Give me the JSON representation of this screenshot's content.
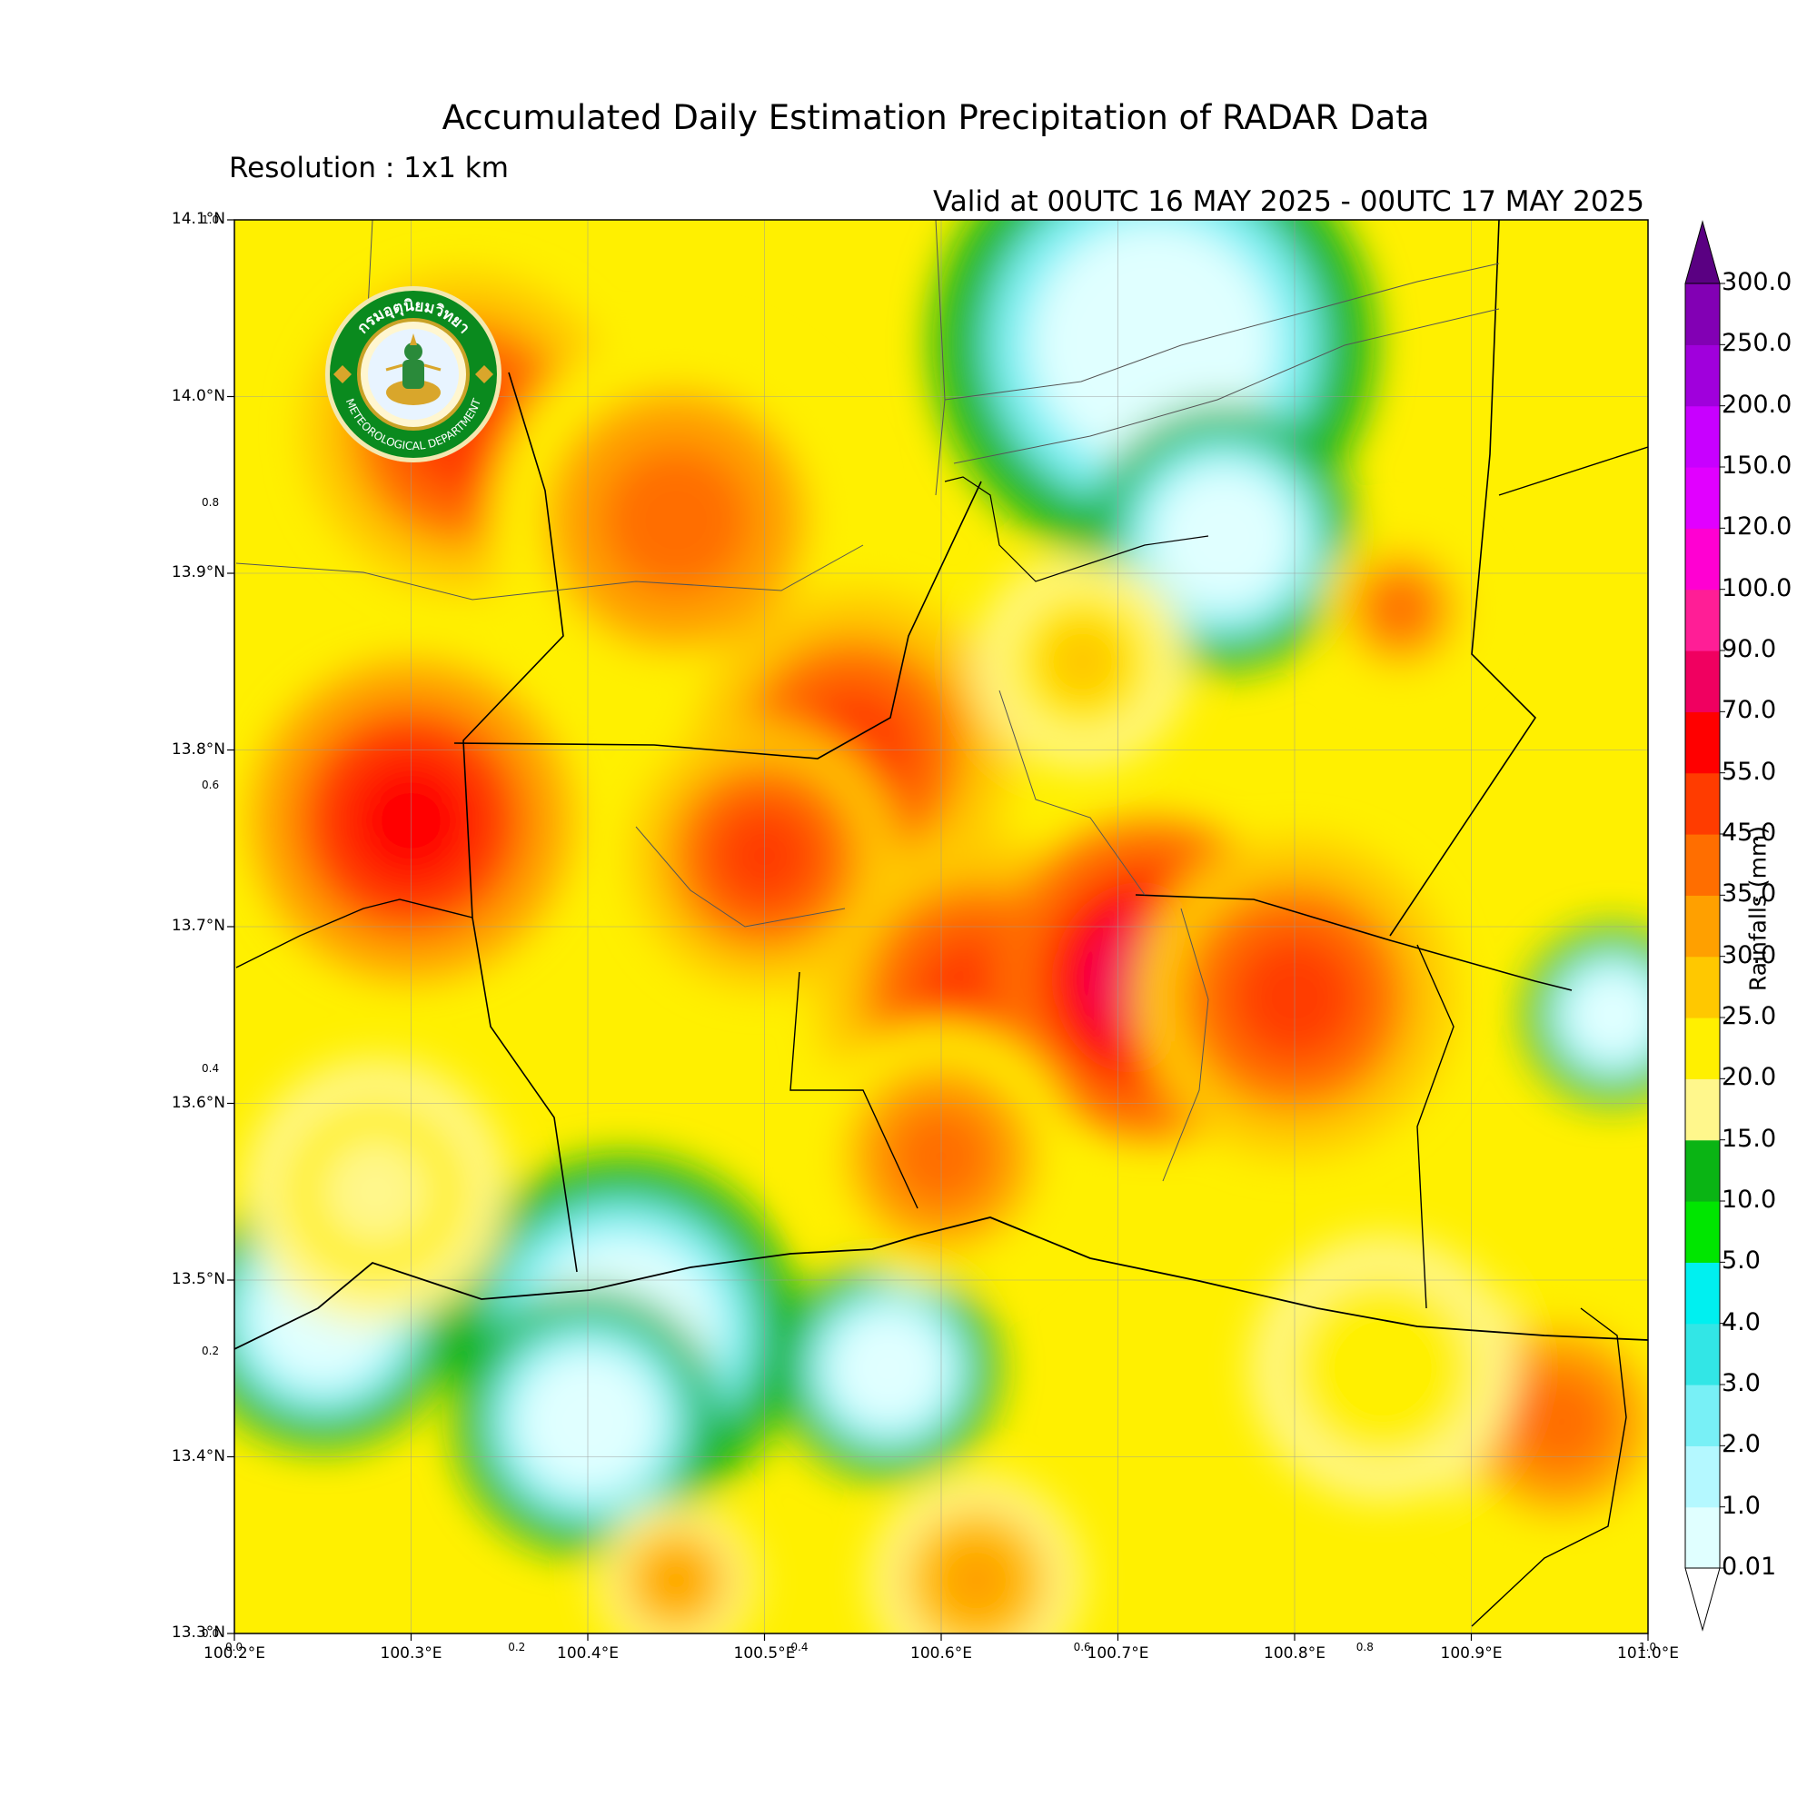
{
  "title": "Accumulated Daily Estimation Precipitation of RADAR Data",
  "resolution": "Resolution : 1x1 km",
  "valid": "Valid at 00UTC 16 MAY 2025 - 00UTC 17 MAY 2025",
  "logo": {
    "text_top": "กรมอุตุนิยมวิทยา",
    "text_bottom": "METEOROLOGICAL DEPARTMENT",
    "icon": "meteorological-department-seal"
  },
  "map": {
    "lon_range": [
      100.2,
      101.0
    ],
    "lat_range": [
      13.3,
      14.1
    ],
    "lon_ticks": [
      {
        "value": 100.2,
        "label": "100.2°E"
      },
      {
        "value": 100.3,
        "label": "100.3°E"
      },
      {
        "value": 100.4,
        "label": "100.4°E"
      },
      {
        "value": 100.5,
        "label": "100.5°E"
      },
      {
        "value": 100.6,
        "label": "100.6°E"
      },
      {
        "value": 100.7,
        "label": "100.7°E"
      },
      {
        "value": 100.8,
        "label": "100.8°E"
      },
      {
        "value": 100.9,
        "label": "100.9°E"
      },
      {
        "value": 101.0,
        "label": "101.0°E"
      }
    ],
    "lat_ticks": [
      {
        "value": 14.1,
        "label": "14.1°N"
      },
      {
        "value": 14.0,
        "label": "14.0°N"
      },
      {
        "value": 13.9,
        "label": "13.9°N"
      },
      {
        "value": 13.8,
        "label": "13.8°N"
      },
      {
        "value": 13.7,
        "label": "13.7°N"
      },
      {
        "value": 13.6,
        "label": "13.6°N"
      },
      {
        "value": 13.5,
        "label": "13.5°N"
      },
      {
        "value": 13.4,
        "label": "13.4°N"
      },
      {
        "value": 13.3,
        "label": "13.3°N"
      }
    ],
    "ghost_ticks_x": [
      {
        "value": 0.0,
        "label": "0.0"
      },
      {
        "value": 0.2,
        "label": "0.2"
      },
      {
        "value": 0.4,
        "label": "0.4"
      },
      {
        "value": 0.6,
        "label": "0.6"
      },
      {
        "value": 0.8,
        "label": "0.8"
      },
      {
        "value": 1.0,
        "label": "1.0"
      }
    ],
    "ghost_ticks_y": [
      {
        "value": 1.0,
        "label": "1.0"
      },
      {
        "value": 0.8,
        "label": "0.8"
      },
      {
        "value": 0.6,
        "label": "0.6"
      },
      {
        "value": 0.4,
        "label": "0.4"
      },
      {
        "value": 0.2,
        "label": "0.2"
      },
      {
        "value": 0.0,
        "label": "0.0"
      }
    ],
    "grid": true,
    "blobs": [
      {
        "lon": 100.33,
        "lat": 13.98,
        "r": 0.06,
        "level": 12
      },
      {
        "lon": 100.45,
        "lat": 13.93,
        "r": 0.07,
        "level": 11
      },
      {
        "lon": 100.55,
        "lat": 13.8,
        "r": 0.06,
        "level": 12
      },
      {
        "lon": 100.3,
        "lat": 13.76,
        "r": 0.06,
        "level": 13
      },
      {
        "lon": 100.5,
        "lat": 13.74,
        "r": 0.05,
        "level": 12
      },
      {
        "lon": 100.62,
        "lat": 13.66,
        "r": 0.06,
        "level": 12
      },
      {
        "lon": 100.72,
        "lat": 13.67,
        "r": 0.06,
        "level": 14
      },
      {
        "lon": 100.8,
        "lat": 13.66,
        "r": 0.06,
        "level": 12
      },
      {
        "lon": 100.6,
        "lat": 13.57,
        "r": 0.05,
        "level": 11
      },
      {
        "lon": 100.95,
        "lat": 13.42,
        "r": 0.05,
        "level": 11
      },
      {
        "lon": 100.68,
        "lat": 13.85,
        "r": 0.04,
        "level": 9
      },
      {
        "lon": 100.86,
        "lat": 13.88,
        "r": 0.03,
        "level": 11
      },
      {
        "lon": 100.28,
        "lat": 13.55,
        "r": 0.05,
        "level": 7
      },
      {
        "lon": 100.85,
        "lat": 13.45,
        "r": 0.05,
        "level": 8
      },
      {
        "lon": 100.62,
        "lat": 13.33,
        "r": 0.04,
        "level": 10
      },
      {
        "lon": 100.45,
        "lat": 13.33,
        "r": 0.03,
        "level": 10
      }
    ],
    "dry_areas": [
      {
        "lon": 100.72,
        "lat": 14.03,
        "r": 0.1
      },
      {
        "lon": 100.42,
        "lat": 13.47,
        "r": 0.08
      },
      {
        "lon": 100.25,
        "lat": 13.48,
        "r": 0.06
      },
      {
        "lon": 100.4,
        "lat": 13.42,
        "r": 0.06
      },
      {
        "lon": 100.57,
        "lat": 13.45,
        "r": 0.05
      },
      {
        "lon": 100.76,
        "lat": 13.92,
        "r": 0.06
      },
      {
        "lon": 100.98,
        "lat": 13.65,
        "r": 0.04
      }
    ]
  },
  "colorbar": {
    "title": "Rainfalls (mm)",
    "levels": [
      "0.01",
      "1.0",
      "2.0",
      "3.0",
      "4.0",
      "5.0",
      "10.0",
      "15.0",
      "20.0",
      "25.0",
      "30.0",
      "35.0",
      "45.0",
      "55.0",
      "70.0",
      "90.0",
      "100.0",
      "120.0",
      "150.0",
      "200.0",
      "250.0",
      "300.0"
    ],
    "colors": [
      "#e0ffff",
      "#b4f8ff",
      "#78f0f6",
      "#32e6e6",
      "#00f0f0",
      "#00e600",
      "#0ab414",
      "#fff78c",
      "#fff000",
      "#ffc800",
      "#ffa000",
      "#ff6e00",
      "#ff3c00",
      "#ff0000",
      "#f00060",
      "#ff1e96",
      "#ff00d2",
      "#e100ff",
      "#c800ff",
      "#a000dc",
      "#8200b4",
      "#5a0082"
    ]
  }
}
